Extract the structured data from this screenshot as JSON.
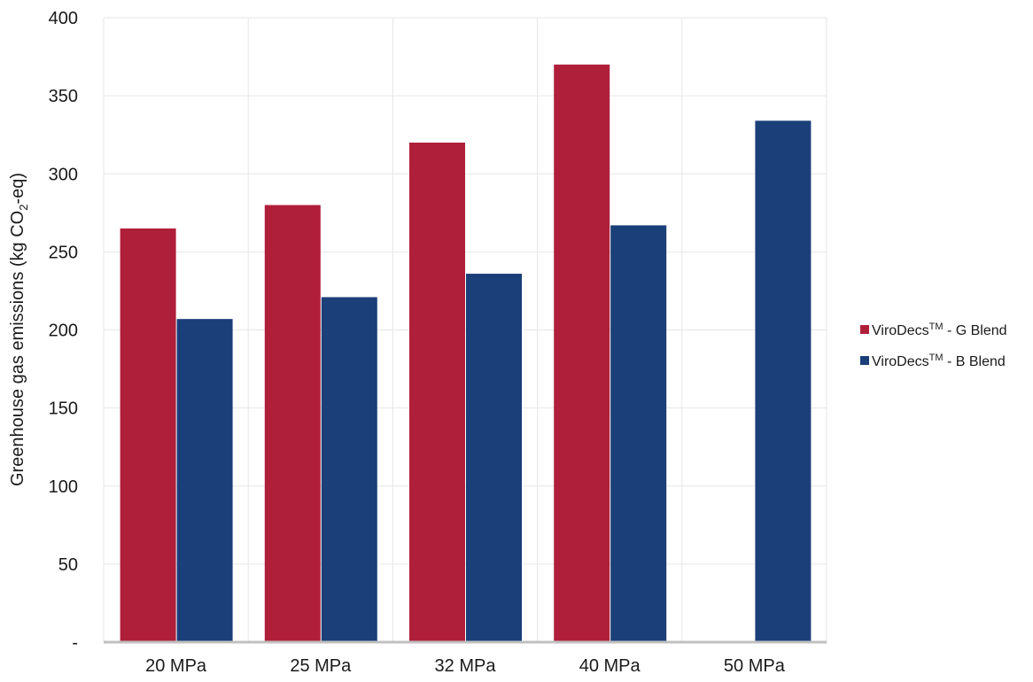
{
  "chart_data": {
    "type": "bar",
    "title": "",
    "xlabel": "",
    "ylabel": {
      "prefix": "Greenhouse gas emissions (kg CO",
      "subscript": "2",
      "suffix": "-eq)"
    },
    "categories": [
      "20 MPa",
      "25 MPa",
      "32 MPa",
      "40 MPa",
      "50 MPa"
    ],
    "series": [
      {
        "name": {
          "base": "ViroDecs",
          "superscript": "TM",
          "tail": " - G Blend"
        },
        "color": "#b01f3a",
        "values": [
          265,
          280,
          320,
          370,
          null
        ]
      },
      {
        "name": {
          "base": "ViroDecs",
          "superscript": "TM",
          "tail": " - B Blend"
        },
        "color": "#1b3f78",
        "values": [
          207,
          221,
          236,
          267,
          334
        ]
      }
    ],
    "ylim": [
      0,
      400
    ],
    "yticks": [
      {
        "value": 0,
        "label": "-"
      },
      {
        "value": 50,
        "label": "50"
      },
      {
        "value": 100,
        "label": "100"
      },
      {
        "value": 150,
        "label": "150"
      },
      {
        "value": 200,
        "label": "200"
      },
      {
        "value": 250,
        "label": "250"
      },
      {
        "value": 300,
        "label": "300"
      },
      {
        "value": 350,
        "label": "350"
      },
      {
        "value": 400,
        "label": "400"
      }
    ],
    "grid": true,
    "legend_position": "right"
  }
}
